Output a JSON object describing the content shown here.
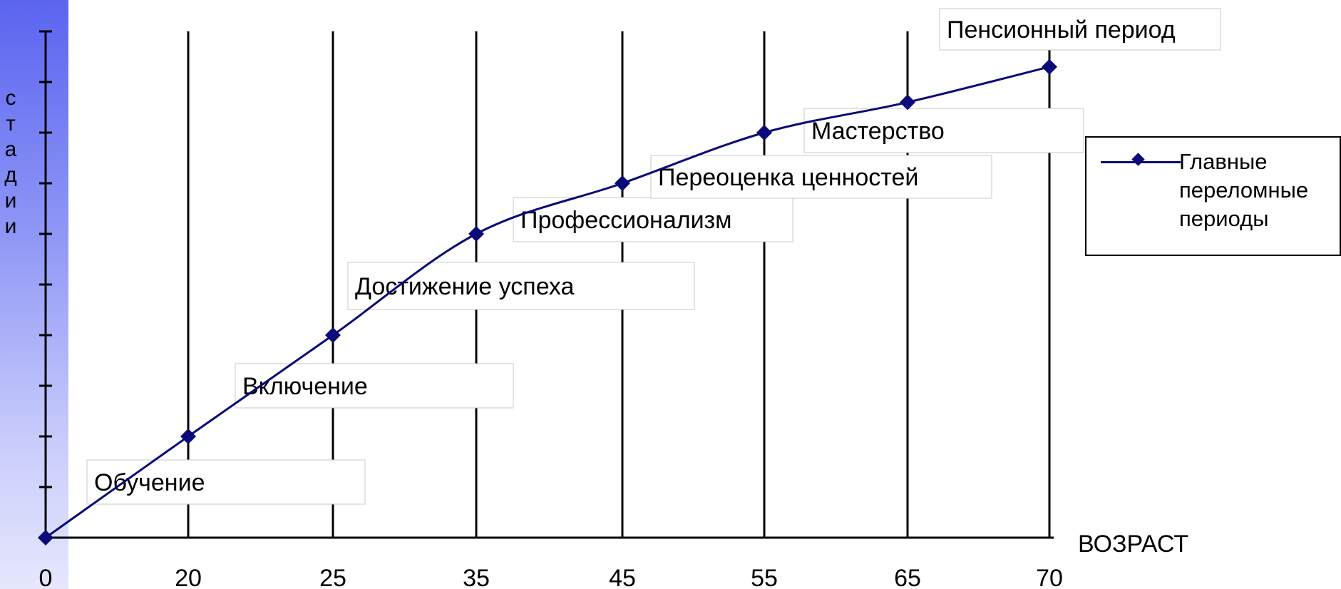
{
  "chart_data": {
    "type": "line",
    "ylabel": "стадии",
    "xlabel": "ВОЗРАСТ",
    "categories": [
      "0",
      "20",
      "25",
      "35",
      "45",
      "55",
      "65",
      "70"
    ],
    "series": [
      {
        "name": "Главные переломные периоды",
        "values": [
          0,
          2,
          4,
          6,
          7,
          8,
          8.6,
          9.3
        ]
      }
    ],
    "stage_labels": [
      "Обучение",
      "Включение",
      "Достижение успеха",
      "Профессионализм",
      "Переоценка ценностей",
      "Мастерство",
      "Пенсионный период"
    ],
    "ylim": [
      0,
      10
    ],
    "y_ticks": 10,
    "grid": "vertical",
    "legend_position": "right",
    "colors": {
      "line": "#0a0a78",
      "marker": "#0a0a78",
      "side_band": "#5b64f0"
    }
  }
}
